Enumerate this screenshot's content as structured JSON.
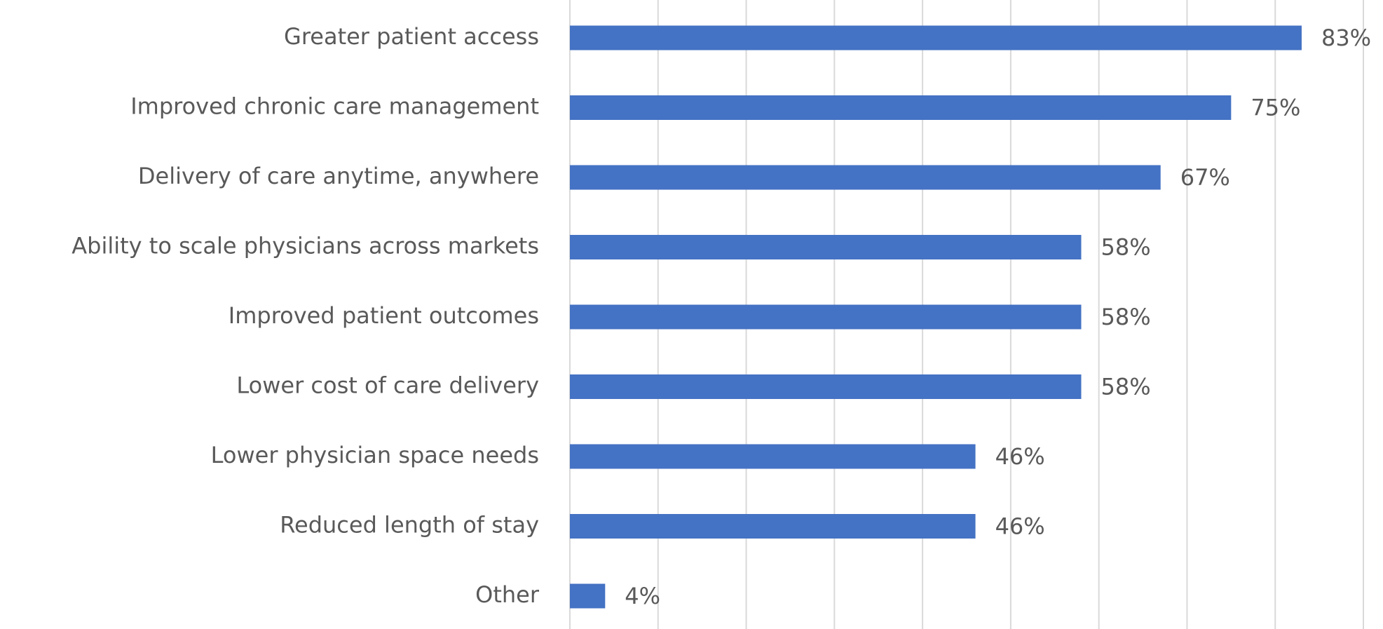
{
  "chart_data": {
    "type": "bar",
    "orientation": "horizontal",
    "categories": [
      "Greater patient access",
      "Improved chronic care management",
      "Delivery of care anytime, anywhere",
      "Ability to scale physicians across markets",
      "Improved patient outcomes",
      "Lower cost of care delivery",
      "Lower physician space needs",
      "Reduced length of stay",
      "Other"
    ],
    "values": [
      83,
      75,
      67,
      58,
      58,
      58,
      46,
      46,
      4
    ],
    "value_labels": [
      "83%",
      "75%",
      "67%",
      "58%",
      "58%",
      "58%",
      "46%",
      "46%",
      "4%"
    ],
    "color": "#4472c4",
    "xlim": [
      0,
      90
    ],
    "xticks": [
      0,
      10,
      20,
      30,
      40,
      50,
      60,
      70,
      80,
      90
    ],
    "grid": true
  }
}
